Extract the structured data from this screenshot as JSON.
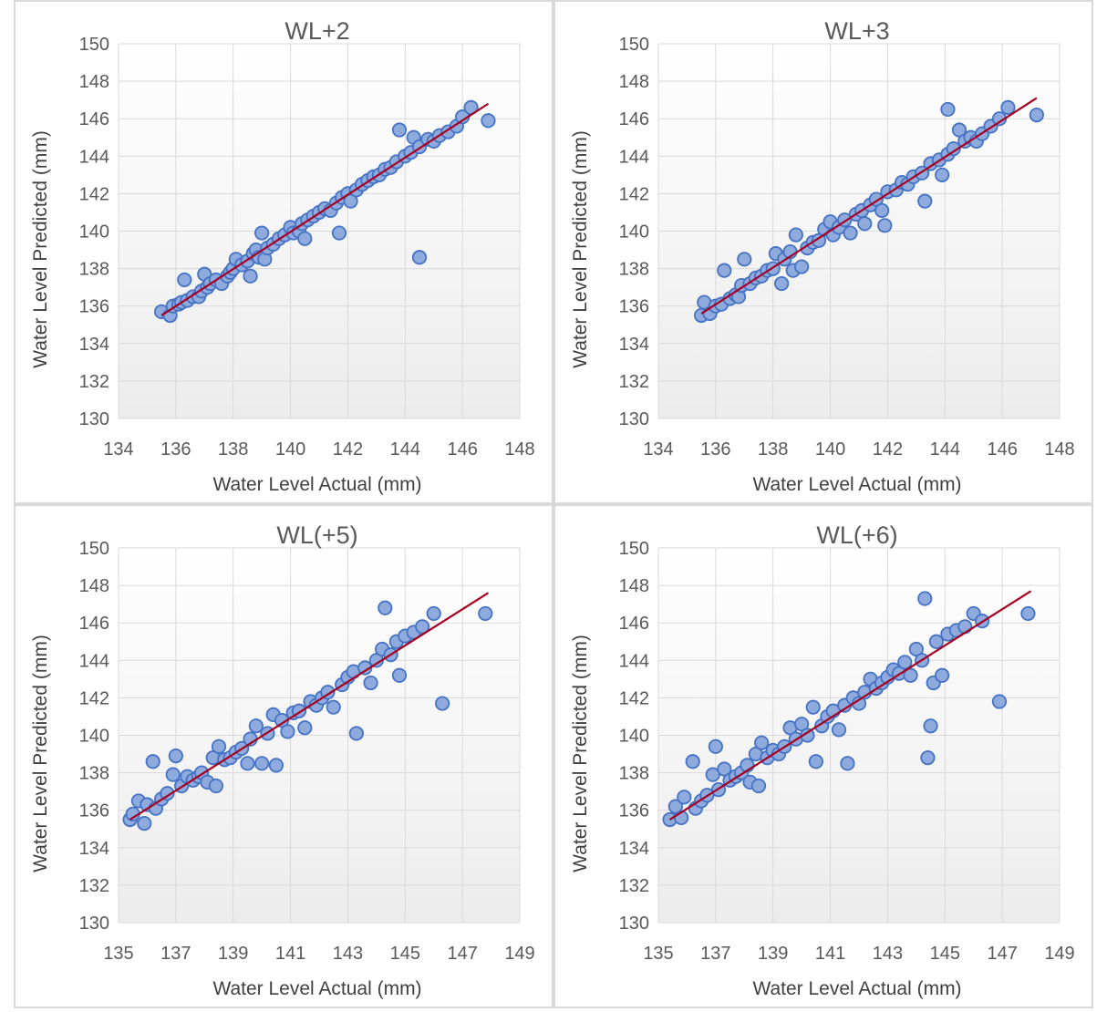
{
  "colors": {
    "marker_fill": "#8faadc",
    "marker_stroke": "#4472c4",
    "trend_line": "#a50021",
    "gridline": "#d9d9d9",
    "panel_border": "#d9d9d9",
    "plot_gradient_top": "#ffffff",
    "plot_gradient_bottom": "#ececec"
  },
  "chart_data": [
    {
      "type": "scatter",
      "title": "WL+2",
      "xlabel": "Water Level Actual (mm)",
      "ylabel": "Water Level Predicted (mm)",
      "xlim": [
        134,
        148
      ],
      "ylim": [
        130,
        150
      ],
      "xticks": [
        "134",
        "136",
        "138",
        "140",
        "142",
        "144",
        "146",
        "148"
      ],
      "yticks": [
        "130",
        "132",
        "134",
        "136",
        "138",
        "140",
        "142",
        "144",
        "146",
        "148",
        "150"
      ],
      "grid": true,
      "trendline": {
        "x": [
          135.5,
          146.9
        ],
        "y": [
          135.5,
          146.8
        ]
      },
      "points": [
        [
          135.5,
          135.7
        ],
        [
          135.8,
          135.5
        ],
        [
          135.9,
          136.0
        ],
        [
          136.1,
          136.1
        ],
        [
          136.2,
          136.2
        ],
        [
          136.3,
          137.4
        ],
        [
          136.4,
          136.3
        ],
        [
          136.6,
          136.5
        ],
        [
          136.8,
          136.5
        ],
        [
          136.9,
          136.8
        ],
        [
          137.0,
          137.7
        ],
        [
          137.1,
          137.0
        ],
        [
          137.2,
          137.2
        ],
        [
          137.4,
          137.4
        ],
        [
          137.6,
          137.2
        ],
        [
          137.8,
          137.6
        ],
        [
          137.9,
          137.8
        ],
        [
          138.0,
          138.0
        ],
        [
          138.1,
          138.5
        ],
        [
          138.3,
          138.2
        ],
        [
          138.5,
          138.4
        ],
        [
          138.6,
          137.6
        ],
        [
          138.7,
          138.8
        ],
        [
          138.8,
          139.0
        ],
        [
          138.9,
          138.6
        ],
        [
          139.0,
          139.9
        ],
        [
          139.1,
          138.5
        ],
        [
          139.2,
          139.1
        ],
        [
          139.4,
          139.3
        ],
        [
          139.6,
          139.6
        ],
        [
          139.8,
          139.8
        ],
        [
          140.0,
          140.2
        ],
        [
          140.1,
          139.9
        ],
        [
          140.3,
          140.0
        ],
        [
          140.4,
          140.4
        ],
        [
          140.5,
          139.6
        ],
        [
          140.6,
          140.6
        ],
        [
          140.8,
          140.8
        ],
        [
          141.0,
          141.0
        ],
        [
          141.2,
          141.2
        ],
        [
          141.4,
          141.1
        ],
        [
          141.6,
          141.5
        ],
        [
          141.7,
          139.9
        ],
        [
          141.8,
          141.8
        ],
        [
          142.0,
          142.0
        ],
        [
          142.1,
          141.6
        ],
        [
          142.3,
          142.2
        ],
        [
          142.5,
          142.5
        ],
        [
          142.7,
          142.7
        ],
        [
          142.9,
          142.9
        ],
        [
          143.1,
          143.0
        ],
        [
          143.3,
          143.3
        ],
        [
          143.5,
          143.4
        ],
        [
          143.7,
          143.7
        ],
        [
          143.8,
          145.4
        ],
        [
          144.0,
          144.0
        ],
        [
          144.2,
          144.2
        ],
        [
          144.3,
          145.0
        ],
        [
          144.5,
          144.5
        ],
        [
          144.5,
          138.6
        ],
        [
          144.8,
          144.9
        ],
        [
          145.0,
          144.8
        ],
        [
          145.2,
          145.1
        ],
        [
          145.5,
          145.3
        ],
        [
          145.8,
          145.6
        ],
        [
          146.0,
          146.1
        ],
        [
          146.3,
          146.6
        ],
        [
          146.9,
          145.9
        ]
      ]
    },
    {
      "type": "scatter",
      "title": "WL+3",
      "xlabel": "Water Level Actual (mm)",
      "ylabel": "Water Level Predicted (mm)",
      "xlim": [
        134,
        148
      ],
      "ylim": [
        130,
        150
      ],
      "xticks": [
        "134",
        "136",
        "138",
        "140",
        "142",
        "144",
        "146",
        "148"
      ],
      "yticks": [
        "130",
        "132",
        "134",
        "136",
        "138",
        "140",
        "142",
        "144",
        "146",
        "148",
        "150"
      ],
      "grid": true,
      "trendline": {
        "x": [
          135.5,
          147.2
        ],
        "y": [
          135.6,
          147.1
        ]
      },
      "points": [
        [
          135.5,
          135.5
        ],
        [
          135.6,
          136.2
        ],
        [
          135.8,
          135.6
        ],
        [
          136.0,
          136.0
        ],
        [
          136.2,
          136.1
        ],
        [
          136.3,
          137.9
        ],
        [
          136.5,
          136.4
        ],
        [
          136.7,
          136.6
        ],
        [
          136.8,
          136.5
        ],
        [
          136.9,
          137.1
        ],
        [
          137.0,
          138.5
        ],
        [
          137.2,
          137.2
        ],
        [
          137.4,
          137.5
        ],
        [
          137.6,
          137.6
        ],
        [
          137.8,
          137.9
        ],
        [
          138.0,
          138.0
        ],
        [
          138.1,
          138.8
        ],
        [
          138.3,
          137.2
        ],
        [
          138.4,
          138.5
        ],
        [
          138.6,
          138.9
        ],
        [
          138.7,
          137.9
        ],
        [
          138.8,
          139.8
        ],
        [
          139.0,
          138.1
        ],
        [
          139.2,
          139.1
        ],
        [
          139.4,
          139.4
        ],
        [
          139.6,
          139.5
        ],
        [
          139.8,
          140.1
        ],
        [
          140.0,
          140.5
        ],
        [
          140.1,
          139.8
        ],
        [
          140.3,
          140.2
        ],
        [
          140.5,
          140.6
        ],
        [
          140.7,
          139.9
        ],
        [
          140.9,
          140.9
        ],
        [
          141.1,
          141.1
        ],
        [
          141.2,
          140.4
        ],
        [
          141.4,
          141.4
        ],
        [
          141.6,
          141.7
        ],
        [
          141.8,
          141.1
        ],
        [
          141.9,
          140.3
        ],
        [
          142.0,
          142.1
        ],
        [
          142.3,
          142.2
        ],
        [
          142.5,
          142.6
        ],
        [
          142.7,
          142.5
        ],
        [
          142.9,
          142.9
        ],
        [
          143.2,
          143.1
        ],
        [
          143.3,
          141.6
        ],
        [
          143.5,
          143.6
        ],
        [
          143.8,
          143.8
        ],
        [
          143.9,
          143.0
        ],
        [
          144.1,
          144.1
        ],
        [
          144.1,
          146.5
        ],
        [
          144.3,
          144.4
        ],
        [
          144.5,
          145.4
        ],
        [
          144.7,
          144.8
        ],
        [
          144.9,
          145.0
        ],
        [
          145.1,
          144.8
        ],
        [
          145.3,
          145.2
        ],
        [
          145.6,
          145.6
        ],
        [
          145.9,
          146.0
        ],
        [
          146.2,
          146.6
        ],
        [
          147.2,
          146.2
        ]
      ]
    },
    {
      "type": "scatter",
      "title": "WL(+5)",
      "xlabel": "Water Level Actual (mm)",
      "ylabel": "Water Level Predicted (mm)",
      "xlim": [
        135,
        149
      ],
      "ylim": [
        130,
        150
      ],
      "xticks": [
        "135",
        "137",
        "139",
        "141",
        "143",
        "145",
        "147",
        "149"
      ],
      "yticks": [
        "130",
        "132",
        "134",
        "136",
        "138",
        "140",
        "142",
        "144",
        "146",
        "148",
        "150"
      ],
      "grid": true,
      "trendline": {
        "x": [
          135.4,
          147.9
        ],
        "y": [
          135.5,
          147.6
        ]
      },
      "points": [
        [
          135.4,
          135.5
        ],
        [
          135.5,
          135.8
        ],
        [
          135.7,
          136.5
        ],
        [
          135.9,
          135.3
        ],
        [
          136.0,
          136.3
        ],
        [
          136.2,
          138.6
        ],
        [
          136.3,
          136.1
        ],
        [
          136.5,
          136.6
        ],
        [
          136.7,
          136.9
        ],
        [
          136.9,
          137.9
        ],
        [
          137.0,
          138.9
        ],
        [
          137.2,
          137.3
        ],
        [
          137.4,
          137.8
        ],
        [
          137.6,
          137.6
        ],
        [
          137.8,
          137.8
        ],
        [
          137.9,
          138.0
        ],
        [
          138.1,
          137.5
        ],
        [
          138.3,
          138.8
        ],
        [
          138.4,
          137.3
        ],
        [
          138.5,
          139.4
        ],
        [
          138.7,
          138.7
        ],
        [
          138.9,
          138.8
        ],
        [
          139.1,
          139.1
        ],
        [
          139.3,
          139.3
        ],
        [
          139.5,
          138.5
        ],
        [
          139.6,
          139.8
        ],
        [
          139.8,
          140.5
        ],
        [
          140.0,
          138.5
        ],
        [
          140.2,
          140.1
        ],
        [
          140.4,
          141.1
        ],
        [
          140.5,
          138.4
        ],
        [
          140.7,
          140.8
        ],
        [
          140.9,
          140.2
        ],
        [
          141.1,
          141.2
        ],
        [
          141.3,
          141.3
        ],
        [
          141.5,
          140.4
        ],
        [
          141.7,
          141.8
        ],
        [
          141.9,
          141.6
        ],
        [
          142.1,
          142.0
        ],
        [
          142.3,
          142.3
        ],
        [
          142.5,
          141.5
        ],
        [
          142.8,
          142.7
        ],
        [
          143.0,
          143.1
        ],
        [
          143.2,
          143.4
        ],
        [
          143.3,
          140.1
        ],
        [
          143.6,
          143.6
        ],
        [
          143.8,
          142.8
        ],
        [
          144.0,
          144.0
        ],
        [
          144.2,
          144.6
        ],
        [
          144.3,
          146.8
        ],
        [
          144.5,
          144.3
        ],
        [
          144.7,
          145.0
        ],
        [
          144.8,
          143.2
        ],
        [
          145.0,
          145.3
        ],
        [
          145.3,
          145.5
        ],
        [
          145.6,
          145.8
        ],
        [
          146.0,
          146.5
        ],
        [
          146.3,
          141.7
        ],
        [
          147.8,
          146.5
        ]
      ]
    },
    {
      "type": "scatter",
      "title": "WL(+6)",
      "xlabel": "Water Level Actual (mm)",
      "ylabel": "Water Level Predicted (mm)",
      "xlim": [
        135,
        149
      ],
      "ylim": [
        130,
        150
      ],
      "xticks": [
        "135",
        "137",
        "139",
        "141",
        "143",
        "145",
        "147",
        "149"
      ],
      "yticks": [
        "130",
        "132",
        "134",
        "136",
        "138",
        "140",
        "142",
        "144",
        "146",
        "148",
        "150"
      ],
      "grid": true,
      "trendline": {
        "x": [
          135.4,
          148.0
        ],
        "y": [
          135.5,
          147.7
        ]
      },
      "points": [
        [
          135.4,
          135.5
        ],
        [
          135.6,
          136.2
        ],
        [
          135.8,
          135.6
        ],
        [
          135.9,
          136.7
        ],
        [
          136.2,
          138.6
        ],
        [
          136.3,
          136.1
        ],
        [
          136.5,
          136.5
        ],
        [
          136.7,
          136.8
        ],
        [
          136.9,
          137.9
        ],
        [
          137.0,
          139.4
        ],
        [
          137.1,
          137.1
        ],
        [
          137.3,
          138.2
        ],
        [
          137.5,
          137.6
        ],
        [
          137.7,
          137.8
        ],
        [
          137.9,
          138.0
        ],
        [
          138.1,
          138.4
        ],
        [
          138.2,
          137.5
        ],
        [
          138.4,
          139.0
        ],
        [
          138.5,
          137.3
        ],
        [
          138.6,
          139.6
        ],
        [
          138.8,
          138.8
        ],
        [
          139.0,
          139.2
        ],
        [
          139.2,
          139.0
        ],
        [
          139.4,
          139.4
        ],
        [
          139.6,
          140.4
        ],
        [
          139.8,
          139.8
        ],
        [
          140.0,
          140.6
        ],
        [
          140.2,
          140.0
        ],
        [
          140.4,
          141.5
        ],
        [
          140.5,
          138.6
        ],
        [
          140.7,
          140.5
        ],
        [
          140.9,
          141.0
        ],
        [
          141.1,
          141.3
        ],
        [
          141.3,
          140.3
        ],
        [
          141.5,
          141.6
        ],
        [
          141.6,
          138.5
        ],
        [
          141.8,
          142.0
        ],
        [
          142.0,
          141.7
        ],
        [
          142.2,
          142.3
        ],
        [
          142.4,
          143.0
        ],
        [
          142.6,
          142.5
        ],
        [
          142.8,
          142.8
        ],
        [
          143.0,
          143.1
        ],
        [
          143.2,
          143.5
        ],
        [
          143.4,
          143.3
        ],
        [
          143.6,
          143.9
        ],
        [
          143.8,
          143.2
        ],
        [
          144.0,
          144.6
        ],
        [
          144.2,
          144.0
        ],
        [
          144.3,
          147.3
        ],
        [
          144.4,
          138.8
        ],
        [
          144.5,
          140.5
        ],
        [
          144.6,
          142.8
        ],
        [
          144.7,
          145.0
        ],
        [
          144.9,
          143.2
        ],
        [
          145.1,
          145.4
        ],
        [
          145.4,
          145.6
        ],
        [
          145.7,
          145.8
        ],
        [
          146.0,
          146.5
        ],
        [
          146.3,
          146.1
        ],
        [
          146.9,
          141.8
        ],
        [
          147.9,
          146.5
        ]
      ]
    }
  ]
}
